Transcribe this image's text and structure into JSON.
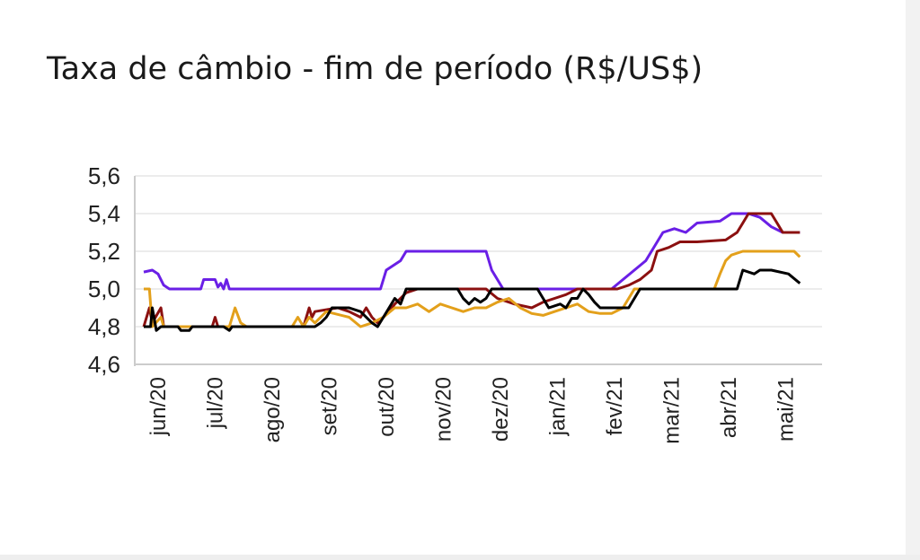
{
  "chart_data": {
    "type": "line",
    "title": "Taxa de câmbio - fim de período (R$/US$)",
    "xlabel": "",
    "ylabel": "",
    "ylim": [
      4.6,
      5.6
    ],
    "yticks": [
      "5,6",
      "5,4",
      "5,2",
      "5,0",
      "4,8",
      "4,6"
    ],
    "ytick_values": [
      5.6,
      5.4,
      5.2,
      5.0,
      4.8,
      4.6
    ],
    "categories": [
      "jun/20",
      "jul/20",
      "ago/20",
      "set/20",
      "out/20",
      "nov/20",
      "dez/20",
      "jan/21",
      "fev/21",
      "mar/21",
      "abr/21",
      "mai/21"
    ],
    "grid": true,
    "legend": "none",
    "series": [
      {
        "color": "#6a1fe6",
        "points": [
          [
            0,
            5.09
          ],
          [
            0.15,
            5.1
          ],
          [
            0.25,
            5.08
          ],
          [
            0.35,
            5.02
          ],
          [
            0.45,
            5.0
          ],
          [
            1.0,
            5.0
          ],
          [
            1.05,
            5.05
          ],
          [
            1.25,
            5.05
          ],
          [
            1.3,
            5.01
          ],
          [
            1.35,
            5.03
          ],
          [
            1.4,
            5.0
          ],
          [
            1.45,
            5.05
          ],
          [
            1.5,
            5.0
          ],
          [
            4.15,
            5.0
          ],
          [
            4.25,
            5.1
          ],
          [
            4.5,
            5.15
          ],
          [
            4.6,
            5.2
          ],
          [
            6.0,
            5.2
          ],
          [
            6.1,
            5.1
          ],
          [
            6.3,
            5.0
          ],
          [
            8.2,
            5.0
          ],
          [
            8.4,
            5.05
          ],
          [
            8.6,
            5.1
          ],
          [
            8.8,
            5.15
          ],
          [
            9.0,
            5.25
          ],
          [
            9.1,
            5.3
          ],
          [
            9.3,
            5.32
          ],
          [
            9.5,
            5.3
          ],
          [
            9.7,
            5.35
          ],
          [
            10.1,
            5.36
          ],
          [
            10.3,
            5.4
          ],
          [
            10.6,
            5.4
          ],
          [
            10.8,
            5.38
          ],
          [
            11.0,
            5.33
          ],
          [
            11.2,
            5.3
          ],
          [
            11.5,
            5.3
          ]
        ]
      },
      {
        "color": "#8b1010",
        "points": [
          [
            0,
            4.8
          ],
          [
            0.1,
            4.9
          ],
          [
            0.15,
            4.82
          ],
          [
            0.3,
            4.9
          ],
          [
            0.35,
            4.8
          ],
          [
            1.2,
            4.8
          ],
          [
            1.25,
            4.85
          ],
          [
            1.3,
            4.8
          ],
          [
            2.8,
            4.8
          ],
          [
            2.9,
            4.9
          ],
          [
            2.95,
            4.85
          ],
          [
            3.0,
            4.88
          ],
          [
            3.4,
            4.9
          ],
          [
            3.6,
            4.88
          ],
          [
            3.8,
            4.85
          ],
          [
            3.9,
            4.9
          ],
          [
            4.0,
            4.85
          ],
          [
            4.1,
            4.82
          ],
          [
            4.2,
            4.85
          ],
          [
            4.3,
            4.88
          ],
          [
            4.4,
            4.92
          ],
          [
            4.6,
            4.98
          ],
          [
            4.8,
            5.0
          ],
          [
            6.0,
            5.0
          ],
          [
            6.2,
            4.95
          ],
          [
            6.5,
            4.92
          ],
          [
            6.8,
            4.9
          ],
          [
            7.0,
            4.93
          ],
          [
            7.2,
            4.95
          ],
          [
            7.4,
            4.97
          ],
          [
            7.6,
            5.0
          ],
          [
            8.3,
            5.0
          ],
          [
            8.5,
            5.02
          ],
          [
            8.7,
            5.05
          ],
          [
            8.9,
            5.1
          ],
          [
            9.0,
            5.2
          ],
          [
            9.2,
            5.22
          ],
          [
            9.4,
            5.25
          ],
          [
            9.7,
            5.25
          ],
          [
            10.2,
            5.26
          ],
          [
            10.4,
            5.3
          ],
          [
            10.5,
            5.35
          ],
          [
            10.6,
            5.4
          ],
          [
            11.0,
            5.4
          ],
          [
            11.1,
            5.35
          ],
          [
            11.2,
            5.3
          ],
          [
            11.5,
            5.3
          ]
        ]
      },
      {
        "color": "#e3a01b",
        "points": [
          [
            0,
            5.0
          ],
          [
            0.1,
            5.0
          ],
          [
            0.15,
            4.8
          ],
          [
            0.3,
            4.85
          ],
          [
            0.35,
            4.8
          ],
          [
            1.5,
            4.8
          ],
          [
            1.6,
            4.9
          ],
          [
            1.7,
            4.82
          ],
          [
            1.8,
            4.8
          ],
          [
            2.6,
            4.8
          ],
          [
            2.7,
            4.85
          ],
          [
            2.8,
            4.8
          ],
          [
            2.9,
            4.85
          ],
          [
            3.0,
            4.82
          ],
          [
            3.2,
            4.88
          ],
          [
            3.6,
            4.85
          ],
          [
            3.8,
            4.8
          ],
          [
            4.0,
            4.82
          ],
          [
            4.2,
            4.85
          ],
          [
            4.4,
            4.9
          ],
          [
            4.6,
            4.9
          ],
          [
            4.8,
            4.92
          ],
          [
            5.0,
            4.88
          ],
          [
            5.2,
            4.92
          ],
          [
            5.4,
            4.9
          ],
          [
            5.6,
            4.88
          ],
          [
            5.8,
            4.9
          ],
          [
            6.0,
            4.9
          ],
          [
            6.2,
            4.93
          ],
          [
            6.4,
            4.95
          ],
          [
            6.6,
            4.9
          ],
          [
            6.8,
            4.87
          ],
          [
            7.0,
            4.86
          ],
          [
            7.2,
            4.88
          ],
          [
            7.4,
            4.9
          ],
          [
            7.6,
            4.92
          ],
          [
            7.8,
            4.88
          ],
          [
            8.0,
            4.87
          ],
          [
            8.2,
            4.87
          ],
          [
            8.4,
            4.9
          ],
          [
            8.6,
            5.0
          ],
          [
            10.0,
            5.0
          ],
          [
            10.1,
            5.08
          ],
          [
            10.2,
            5.15
          ],
          [
            10.3,
            5.18
          ],
          [
            10.5,
            5.2
          ],
          [
            11.4,
            5.2
          ],
          [
            11.5,
            5.17
          ]
        ]
      },
      {
        "color": "#000000",
        "points": [
          [
            0,
            4.8
          ],
          [
            0.12,
            4.8
          ],
          [
            0.15,
            4.9
          ],
          [
            0.22,
            4.78
          ],
          [
            0.3,
            4.8
          ],
          [
            0.6,
            4.8
          ],
          [
            0.65,
            4.78
          ],
          [
            0.8,
            4.78
          ],
          [
            0.85,
            4.8
          ],
          [
            1.4,
            4.8
          ],
          [
            1.5,
            4.78
          ],
          [
            1.55,
            4.8
          ],
          [
            3.0,
            4.8
          ],
          [
            3.1,
            4.82
          ],
          [
            3.2,
            4.85
          ],
          [
            3.3,
            4.9
          ],
          [
            3.6,
            4.9
          ],
          [
            3.8,
            4.88
          ],
          [
            4.0,
            4.82
          ],
          [
            4.1,
            4.8
          ],
          [
            4.2,
            4.85
          ],
          [
            4.4,
            4.95
          ],
          [
            4.5,
            4.92
          ],
          [
            4.6,
            5.0
          ],
          [
            5.5,
            5.0
          ],
          [
            5.6,
            4.95
          ],
          [
            5.7,
            4.92
          ],
          [
            5.8,
            4.95
          ],
          [
            5.9,
            4.93
          ],
          [
            6.0,
            4.95
          ],
          [
            6.1,
            5.0
          ],
          [
            6.9,
            5.0
          ],
          [
            7.0,
            4.95
          ],
          [
            7.1,
            4.9
          ],
          [
            7.3,
            4.92
          ],
          [
            7.4,
            4.9
          ],
          [
            7.5,
            4.95
          ],
          [
            7.6,
            4.95
          ],
          [
            7.7,
            5.0
          ],
          [
            7.8,
            4.97
          ],
          [
            7.9,
            4.93
          ],
          [
            8.0,
            4.9
          ],
          [
            8.5,
            4.9
          ],
          [
            8.6,
            4.95
          ],
          [
            8.7,
            5.0
          ],
          [
            10.4,
            5.0
          ],
          [
            10.5,
            5.1
          ],
          [
            10.7,
            5.08
          ],
          [
            10.8,
            5.1
          ],
          [
            11.0,
            5.1
          ],
          [
            11.3,
            5.08
          ],
          [
            11.5,
            5.03
          ]
        ]
      }
    ]
  }
}
